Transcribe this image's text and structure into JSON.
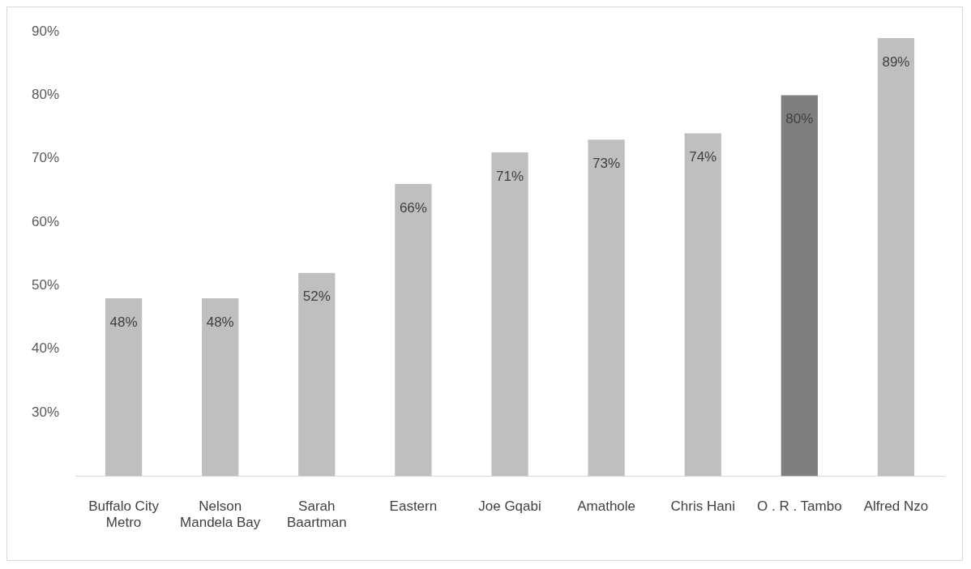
{
  "chart_data": {
    "type": "bar",
    "categories": [
      "Buffalo City Metro",
      "Nelson Mandela Bay",
      "Sarah Baartman",
      "Eastern",
      "Joe Gqabi",
      "Amathole",
      "Chris Hani",
      "O . R . Tambo",
      "Alfred Nzo"
    ],
    "values": [
      48,
      48,
      52,
      66,
      71,
      73,
      74,
      80,
      89
    ],
    "colors": [
      "#bfbfbf",
      "#bfbfbf",
      "#bfbfbf",
      "#bfbfbf",
      "#bfbfbf",
      "#bfbfbf",
      "#bfbfbf",
      "#7f7f7f",
      "#bfbfbf"
    ],
    "value_labels": [
      "48%",
      "48%",
      "52%",
      "66%",
      "71%",
      "73%",
      "74%",
      "80%",
      "89%"
    ],
    "ylim": [
      20,
      90
    ],
    "yticks": [
      {
        "value": 30,
        "label": "30%"
      },
      {
        "value": 40,
        "label": "40%"
      },
      {
        "value": 50,
        "label": "50%"
      },
      {
        "value": 60,
        "label": "60%"
      },
      {
        "value": 70,
        "label": "70%"
      },
      {
        "value": 80,
        "label": "80%"
      },
      {
        "value": 90,
        "label": "90%"
      }
    ],
    "grid": false,
    "legend": false
  }
}
